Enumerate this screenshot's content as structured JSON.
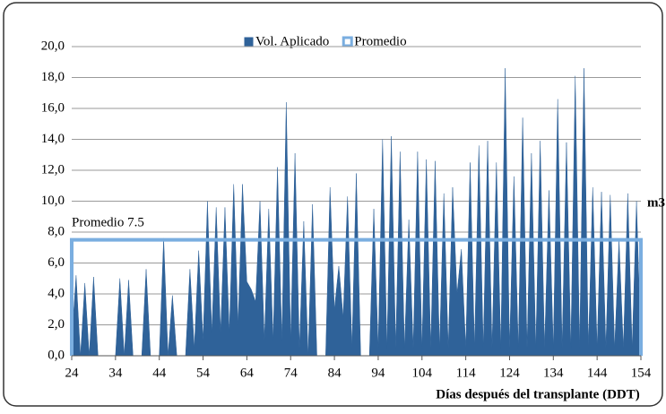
{
  "chart_data": {
    "type": "area",
    "series": [
      {
        "name": "Vol. Aplicado",
        "color": "#2f6299",
        "values": [
          1.0,
          5.2,
          0,
          4.7,
          0,
          5.1,
          0,
          0,
          0,
          0,
          0,
          5.0,
          0,
          4.9,
          0,
          0,
          0,
          5.6,
          0,
          0,
          0,
          7.6,
          0,
          3.9,
          0,
          0,
          0,
          5.6,
          0.5,
          6.8,
          1.0,
          10.0,
          1.5,
          9.6,
          1.5,
          9.6,
          1.5,
          11.1,
          2.0,
          11.1,
          4.8,
          4.3,
          3.5,
          10.0,
          1.0,
          9.5,
          1.0,
          12.2,
          1.0,
          16.4,
          1.0,
          13.1,
          0.5,
          8.7,
          0,
          9.8,
          0,
          0,
          0,
          10.9,
          3.0,
          5.8,
          2.5,
          10.3,
          0.5,
          11.8,
          0,
          0,
          0,
          9.5,
          0.5,
          14.0,
          0.5,
          14.2,
          0.5,
          13.2,
          0.5,
          8.8,
          0.5,
          13.2,
          0.5,
          12.7,
          0.5,
          12.6,
          0.5,
          10.5,
          0.5,
          10.9,
          4.0,
          6.9,
          0.5,
          12.5,
          0.5,
          13.6,
          0.5,
          13.9,
          0.5,
          12.5,
          0.5,
          18.6,
          0.5,
          11.6,
          0.5,
          15.4,
          0.5,
          13.1,
          0.5,
          13.9,
          0.5,
          10.7,
          0.5,
          16.6,
          0.5,
          13.8,
          0.5,
          18.1,
          0.5,
          18.6,
          0.5,
          10.9,
          0.5,
          10.6,
          0.5,
          10.4,
          0.5,
          7.5,
          0.5,
          10.5,
          0.5,
          10.0,
          0.5
        ]
      },
      {
        "name": "Promedio",
        "color": "#7aaee0",
        "values": [
          7.5,
          7.5,
          7.5,
          7.5,
          7.5,
          7.5,
          7.5,
          7.5,
          7.5,
          7.5,
          7.5,
          7.5,
          7.5,
          7.5,
          7.5,
          7.5,
          7.5,
          7.5,
          7.5,
          7.5,
          7.5,
          7.5,
          7.5,
          7.5,
          7.5,
          7.5,
          7.5,
          7.5,
          7.5,
          7.5,
          7.5,
          7.5,
          7.5,
          7.5,
          7.5,
          7.5,
          7.5,
          7.5,
          7.5,
          7.5,
          7.5,
          7.5,
          7.5,
          7.5,
          7.5,
          7.5,
          7.5,
          7.5,
          7.5,
          7.5,
          7.5,
          7.5,
          7.5,
          7.5,
          7.5,
          7.5,
          7.5,
          7.5,
          7.5,
          7.5,
          7.5,
          7.5,
          7.5,
          7.5,
          7.5,
          7.5,
          7.5,
          7.5,
          7.5,
          7.5,
          7.5,
          7.5,
          7.5,
          7.5,
          7.5,
          7.5,
          7.5,
          7.5,
          7.5,
          7.5,
          7.5,
          7.5,
          7.5,
          7.5,
          7.5,
          7.5,
          7.5,
          7.5,
          7.5,
          7.5,
          7.5,
          7.5,
          7.5,
          7.5,
          7.5,
          7.5,
          7.5,
          7.5,
          7.5,
          7.5,
          7.5,
          7.5,
          7.5,
          7.5,
          7.5,
          7.5,
          7.5,
          7.5,
          7.5,
          7.5,
          7.5,
          7.5,
          7.5,
          7.5,
          7.5,
          7.5,
          7.5,
          7.5,
          7.5,
          7.5,
          7.5,
          7.5,
          7.5,
          7.5,
          7.5,
          7.5,
          7.5,
          7.5,
          7.5,
          7.5,
          7.5
        ]
      }
    ],
    "x": [
      24,
      25,
      26,
      27,
      28,
      29,
      30,
      31,
      32,
      33,
      34,
      35,
      36,
      37,
      38,
      39,
      40,
      41,
      42,
      43,
      44,
      45,
      46,
      47,
      48,
      49,
      50,
      51,
      52,
      53,
      54,
      55,
      56,
      57,
      58,
      59,
      60,
      61,
      62,
      63,
      64,
      65,
      66,
      67,
      68,
      69,
      70,
      71,
      72,
      73,
      74,
      75,
      76,
      77,
      78,
      79,
      80,
      81,
      82,
      83,
      84,
      85,
      86,
      87,
      88,
      89,
      90,
      91,
      92,
      93,
      94,
      95,
      96,
      97,
      98,
      99,
      100,
      101,
      102,
      103,
      104,
      105,
      106,
      107,
      108,
      109,
      110,
      111,
      112,
      113,
      114,
      115,
      116,
      117,
      118,
      119,
      120,
      121,
      122,
      123,
      124,
      125,
      126,
      127,
      128,
      129,
      130,
      131,
      132,
      133,
      134,
      135,
      136,
      137,
      138,
      139,
      140,
      141,
      142,
      143,
      144,
      145,
      146,
      147,
      148,
      149,
      150,
      151,
      152,
      153,
      154
    ],
    "xlim": [
      24,
      154
    ],
    "xticks": [
      24,
      34,
      44,
      54,
      64,
      74,
      84,
      94,
      104,
      114,
      124,
      134,
      144,
      154
    ],
    "ylim": [
      0,
      20
    ],
    "yticks": [
      {
        "value": 0,
        "label": "0,0"
      },
      {
        "value": 2,
        "label": "2,0"
      },
      {
        "value": 4,
        "label": "4,0"
      },
      {
        "value": 6,
        "label": "6,0"
      },
      {
        "value": 8,
        "label": "8,0"
      },
      {
        "value": 10,
        "label": "10,0"
      },
      {
        "value": 12,
        "label": "12,0"
      },
      {
        "value": 14,
        "label": "14,0"
      },
      {
        "value": 16,
        "label": "16,0"
      },
      {
        "value": 18,
        "label": "18,0"
      },
      {
        "value": 20,
        "label": "20,0"
      }
    ],
    "xlabel": "Días después del transplante (DDT)",
    "ylabel": "m3",
    "annotation": "Promedio 7.5",
    "grid": true,
    "legend": "top"
  }
}
